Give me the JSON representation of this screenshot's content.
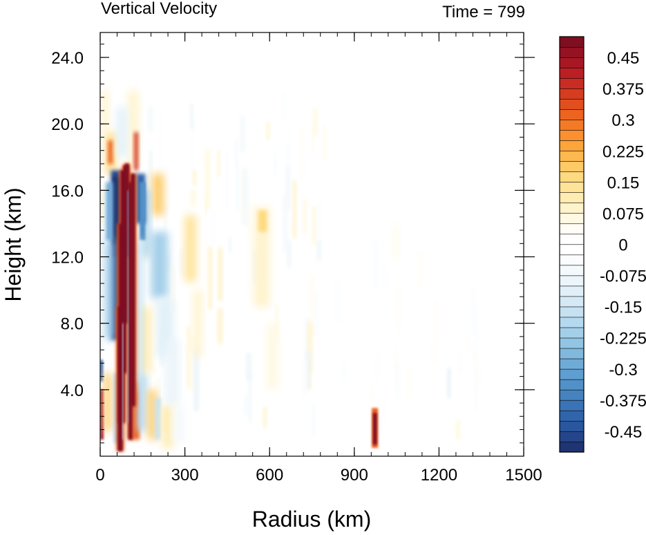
{
  "chart_data": {
    "type": "heatmap",
    "title": "Vertical Velocity",
    "subtitle": "Time = 799",
    "xlabel": "Radius (km)",
    "ylabel": "Height (km)",
    "xlim": [
      0,
      1500
    ],
    "ylim": [
      0,
      25.5
    ],
    "xticks": [
      0,
      300,
      600,
      900,
      1200,
      1500
    ],
    "xtick_labels": [
      "0",
      "300",
      "600",
      "900",
      "1200",
      "1500"
    ],
    "yticks": [
      4,
      8,
      12,
      16,
      20,
      24
    ],
    "ytick_labels": [
      "4.0",
      "8.0",
      "12.0",
      "16.0",
      "20.0",
      "24.0"
    ],
    "colorbar": {
      "levels": [
        -0.5,
        -0.475,
        -0.45,
        -0.425,
        -0.4,
        -0.375,
        -0.35,
        -0.325,
        -0.3,
        -0.275,
        -0.25,
        -0.225,
        -0.2,
        -0.175,
        -0.15,
        -0.125,
        -0.1,
        -0.075,
        -0.05,
        -0.025,
        0,
        0.025,
        0.05,
        0.075,
        0.1,
        0.125,
        0.15,
        0.175,
        0.2,
        0.225,
        0.25,
        0.275,
        0.3,
        0.325,
        0.35,
        0.375,
        0.4,
        0.425,
        0.45,
        0.475,
        0.5
      ],
      "tick_values": [
        -0.45,
        -0.375,
        -0.3,
        -0.225,
        -0.15,
        -0.075,
        0,
        0.075,
        0.15,
        0.225,
        0.3,
        0.375,
        0.45
      ],
      "tick_labels": [
        "-0.45",
        "-0.375",
        "-0.3",
        "-0.225",
        "-0.15",
        "-0.075",
        "0",
        "0.075",
        "0.15",
        "0.225",
        "0.3",
        "0.375",
        "0.45"
      ],
      "colors": [
        "#1f3473",
        "#24458a",
        "#2a569e",
        "#3065ab",
        "#3a74b6",
        "#4583bf",
        "#5191c8",
        "#5f9ed0",
        "#6fabd7",
        "#80b8de",
        "#92c4e4",
        "#a4cfe9",
        "#b5d9ee",
        "#c5e1f2",
        "#d4e9f5",
        "#e1f0f8",
        "#ecf5fa",
        "#f4f9fc",
        "#fafcfe",
        "#ffffff",
        "#ffffff",
        "#fffdf5",
        "#fff9e3",
        "#fff3cc",
        "#ffecb2",
        "#fee398",
        "#fed97f",
        "#fdca66",
        "#fdb94f",
        "#fca53b",
        "#fa902f",
        "#f47a26",
        "#ec6420",
        "#e24f1f",
        "#d63c20",
        "#c92c22",
        "#bb1f24",
        "#a81724",
        "#951223",
        "#7f0f20"
      ]
    },
    "features": [
      {
        "type": "updraft",
        "r": [
          60,
          100
        ],
        "z": [
          0.5,
          17.5
        ],
        "w_max": 0.5
      },
      {
        "type": "updraft",
        "r": [
          100,
          125
        ],
        "z": [
          1.0,
          17.0
        ],
        "w_max": 0.5
      },
      {
        "type": "downdraft",
        "r": [
          40,
          75
        ],
        "z": [
          5.0,
          17.0
        ],
        "w_min": -0.5
      },
      {
        "type": "downdraft",
        "r": [
          125,
          160
        ],
        "z": [
          14.0,
          17.0
        ],
        "w_min": -0.45
      },
      {
        "type": "updraft",
        "r": [
          0,
          15
        ],
        "z": [
          1.0,
          4.0
        ],
        "w_max": 0.45
      },
      {
        "type": "updraft",
        "r": [
          960,
          985
        ],
        "z": [
          0.5,
          2.8
        ],
        "w_max": 0.45
      },
      {
        "type": "updraft",
        "r": [
          185,
          230
        ],
        "z": [
          14.5,
          17.0
        ],
        "w_max": 0.2
      },
      {
        "type": "updraft",
        "r": [
          300,
          340
        ],
        "z": [
          10.5,
          14.5
        ],
        "w_max": 0.15
      },
      {
        "type": "updraft",
        "r": [
          540,
          600
        ],
        "z": [
          9.0,
          15.0
        ],
        "w_max": 0.1
      },
      {
        "type": "downdraft",
        "r": [
          180,
          240
        ],
        "z": [
          9.5,
          13.5
        ],
        "w_min": -0.25
      }
    ]
  }
}
